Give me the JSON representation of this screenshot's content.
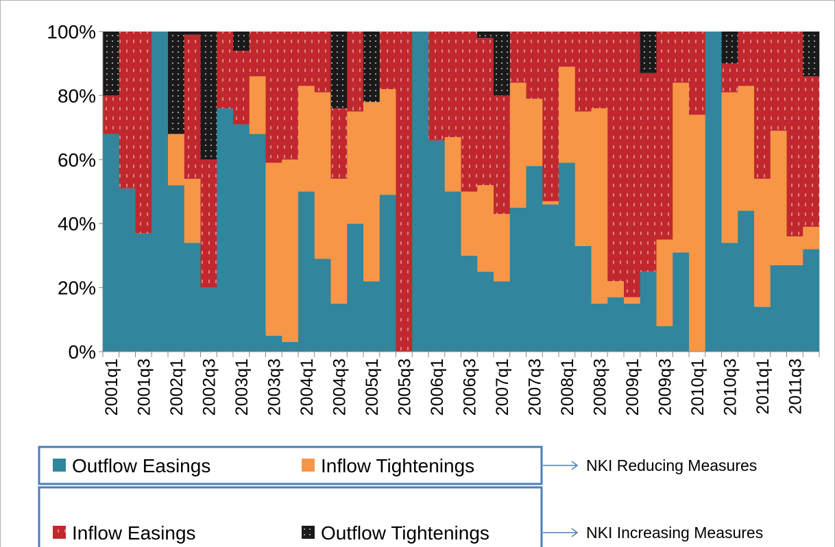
{
  "chart_data": {
    "type": "stacked_bar",
    "categories": [
      "2001q1",
      null,
      "2001q3",
      null,
      "2002q1",
      null,
      "2002q3",
      null,
      "2003q1",
      null,
      "2003q3",
      null,
      "2004q1",
      null,
      "2004q3",
      null,
      "2005q1",
      null,
      "2005q3",
      null,
      "2006q1",
      null,
      "2006q3",
      null,
      "2007q1",
      null,
      "2007q3",
      null,
      "2008q1",
      null,
      "2008q3",
      null,
      "2009q1",
      null,
      "2009q3",
      null,
      "2010q1",
      null,
      "2010q3",
      null,
      "2011q1",
      null,
      "2011q3",
      null
    ],
    "series": [
      {
        "name": "Outflow Easings",
        "color": "#31859c",
        "values": [
          68,
          51,
          37,
          100,
          52,
          34,
          20,
          76,
          71,
          68,
          5,
          3,
          50,
          29,
          15,
          40,
          22,
          49,
          0,
          100,
          66,
          50,
          30,
          25,
          22,
          45,
          58,
          46,
          59,
          33,
          15,
          17,
          15,
          25,
          8,
          31,
          0,
          100,
          34,
          44,
          14,
          27,
          27,
          32
        ]
      },
      {
        "name": "Inflow Tightenings",
        "color": "#f79646",
        "values": [
          0,
          0,
          0,
          0,
          16,
          20,
          0,
          0,
          0,
          18,
          54,
          57,
          33,
          52,
          39,
          35,
          56,
          33,
          0,
          0,
          0,
          17,
          20,
          27,
          21,
          39,
          21,
          1,
          30,
          42,
          61,
          5,
          2,
          0,
          27,
          53,
          74,
          0,
          47,
          39,
          40,
          42,
          9,
          7
        ]
      },
      {
        "name": "Inflow Easings",
        "color": "#c0282d",
        "values": [
          12,
          49,
          63,
          0,
          0,
          45,
          40,
          24,
          23,
          14,
          41,
          40,
          17,
          19,
          22,
          25,
          0,
          18,
          100,
          0,
          34,
          33,
          50,
          46,
          37,
          16,
          21,
          53,
          11,
          25,
          24,
          78,
          83,
          62,
          65,
          16,
          26,
          0,
          9,
          17,
          46,
          31,
          64,
          47
        ]
      },
      {
        "name": "Outflow Tightenings",
        "color": "#1a1a1a",
        "values": [
          20,
          0,
          0,
          0,
          32,
          1,
          40,
          0,
          6,
          0,
          0,
          0,
          0,
          0,
          24,
          0,
          22,
          0,
          0,
          0,
          0,
          0,
          0,
          2,
          20,
          0,
          0,
          0,
          0,
          0,
          0,
          0,
          0,
          13,
          0,
          0,
          0,
          0,
          10,
          0,
          0,
          0,
          0,
          14
        ]
      }
    ],
    "ylim": [
      0,
      100
    ],
    "yticks": [
      {
        "value": 0,
        "label": "0%"
      },
      {
        "value": 20,
        "label": "20%"
      },
      {
        "value": 40,
        "label": "40%"
      },
      {
        "value": 60,
        "label": "60%"
      },
      {
        "value": 80,
        "label": "80%"
      },
      {
        "value": 100,
        "label": "100%"
      }
    ],
    "annotations": [
      "NKI Reducing Measures",
      "NKI Increasing Measures"
    ]
  }
}
